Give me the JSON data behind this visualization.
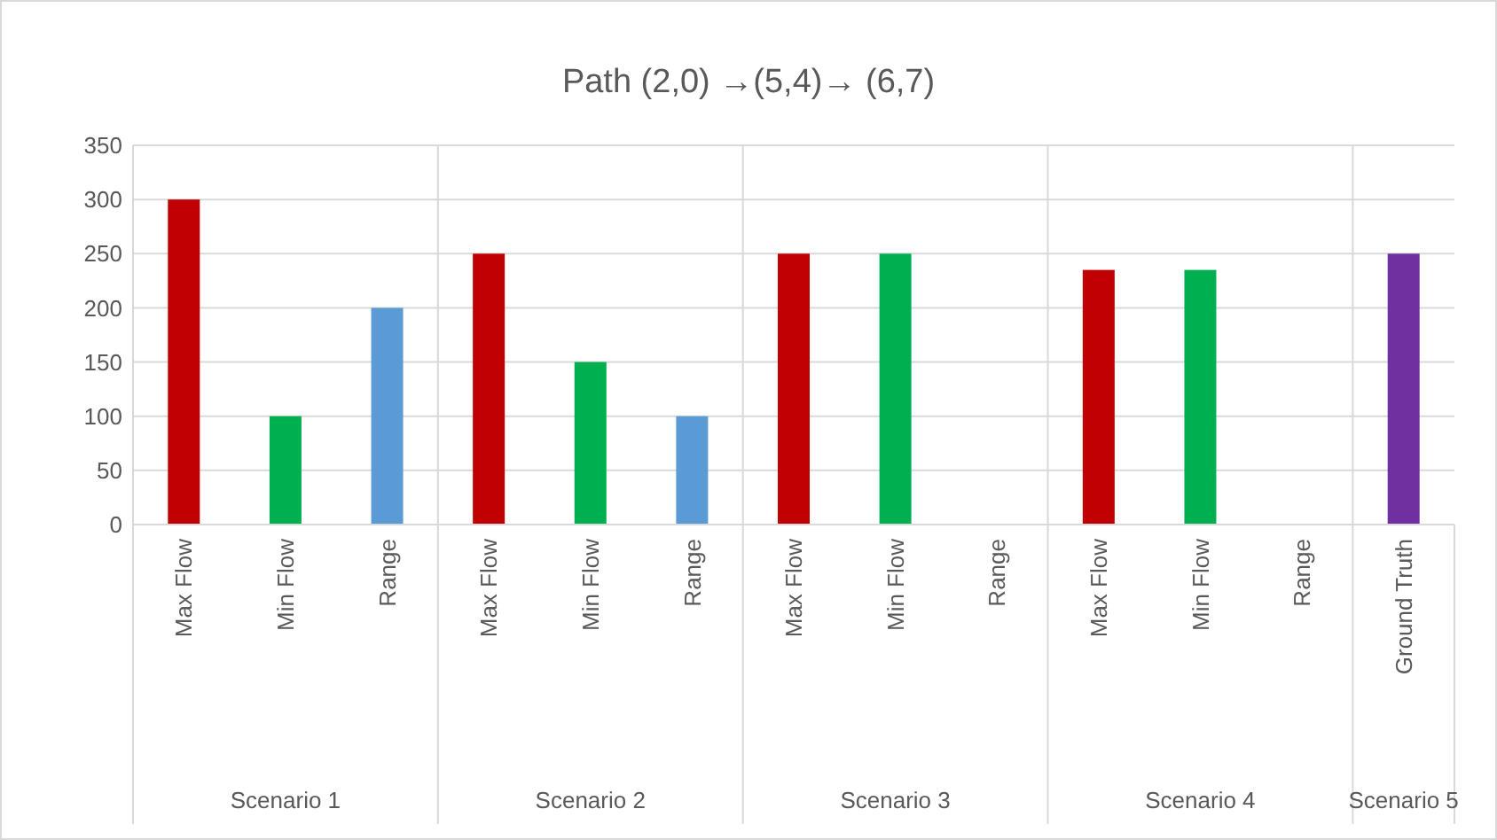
{
  "chart_data": {
    "type": "bar",
    "title": "Path (2,0) →(5,4)→ (6,7)",
    "categories": [
      "Max Flow",
      "Min Flow",
      "Range",
      "Max Flow",
      "Min Flow",
      "Range",
      "Max Flow",
      "Min Flow",
      "Range",
      "Max Flow",
      "Min Flow",
      "Range",
      "Ground Truth"
    ],
    "values": [
      300,
      100,
      200,
      250,
      150,
      100,
      250,
      250,
      0,
      235,
      235,
      0,
      250
    ],
    "colors": [
      "#c00000",
      "#00b050",
      "#5b9bd5",
      "#c00000",
      "#00b050",
      "#5b9bd5",
      "#c00000",
      "#00b050",
      "#5b9bd5",
      "#c00000",
      "#00b050",
      "#5b9bd5",
      "#7030a0"
    ],
    "ylim": [
      0,
      350
    ],
    "yticks": [
      0,
      50,
      100,
      150,
      200,
      250,
      300,
      350
    ],
    "grid": "y",
    "annotations": [
      "Scenario 1",
      "Scenario 2",
      "Scenario 3",
      "Scenario 4",
      "Scenario 5"
    ]
  }
}
